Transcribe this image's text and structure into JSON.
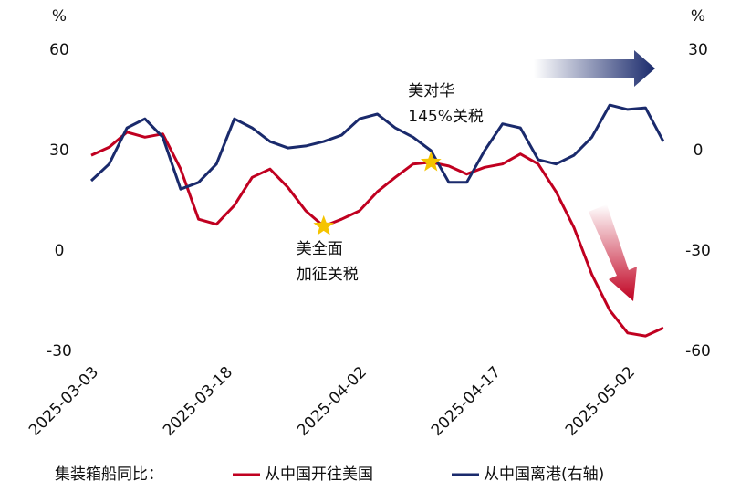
{
  "chart_data": {
    "type": "line",
    "ylabel": "%",
    "y2label": "%",
    "x": [
      "2025-03-03",
      "2025-03-05",
      "2025-03-07",
      "2025-03-09",
      "2025-03-11",
      "2025-03-13",
      "2025-03-15",
      "2025-03-17",
      "2025-03-19",
      "2025-03-21",
      "2025-03-23",
      "2025-03-25",
      "2025-03-27",
      "2025-03-29",
      "2025-03-31",
      "2025-04-02",
      "2025-04-04",
      "2025-04-06",
      "2025-04-08",
      "2025-04-10",
      "2025-04-12",
      "2025-04-14",
      "2025-04-16",
      "2025-04-18",
      "2025-04-20",
      "2025-04-22",
      "2025-04-24",
      "2025-04-26",
      "2025-04-28",
      "2025-04-30",
      "2025-05-02",
      "2025-05-04",
      "2025-05-06"
    ],
    "xticks": [
      "2025-03-03",
      "2025-03-18",
      "2025-04-02",
      "2025-04-17",
      "2025-05-02"
    ],
    "ylim": [
      -30,
      60
    ],
    "yticks": [
      -30,
      0,
      30,
      60
    ],
    "y2lim": [
      -60,
      30
    ],
    "y2ticks": [
      -60,
      -30,
      0,
      30
    ],
    "legend_title": "集装箱船同比：",
    "series": [
      {
        "name": "从中国开往美国",
        "color": "#c00020",
        "values": [
          28.6,
          31,
          35.5,
          34,
          35,
          24.5,
          9.5,
          8,
          13.6,
          22,
          24.5,
          19,
          12,
          7.4,
          9.5,
          12,
          17.7,
          22,
          26,
          26.5,
          25.4,
          23,
          25,
          26,
          29,
          26,
          17.7,
          7,
          -7,
          -17.7,
          -24.5,
          -25.4,
          -23
        ]
      },
      {
        "name": "从中国离港(右轴)",
        "color": "#1a2a6c",
        "axis": "y2",
        "values": [
          -9,
          -4,
          6.8,
          9.5,
          4,
          -11.5,
          -9.5,
          -4,
          9.5,
          6.8,
          2.7,
          0.8,
          1.4,
          2.7,
          4.6,
          9.5,
          10.9,
          6.8,
          4,
          0,
          -9.5,
          -9.5,
          0,
          8,
          6.8,
          -2.7,
          -4,
          -1.4,
          4,
          13.6,
          12.3,
          12.8,
          2.7
        ]
      }
    ],
    "annotations": [
      {
        "lines": [
          "美全面",
          "加征关税"
        ],
        "x": "2025-03-29"
      },
      {
        "lines": [
          "美对华",
          "145%关税"
        ],
        "x": "2025-04-10"
      }
    ]
  }
}
